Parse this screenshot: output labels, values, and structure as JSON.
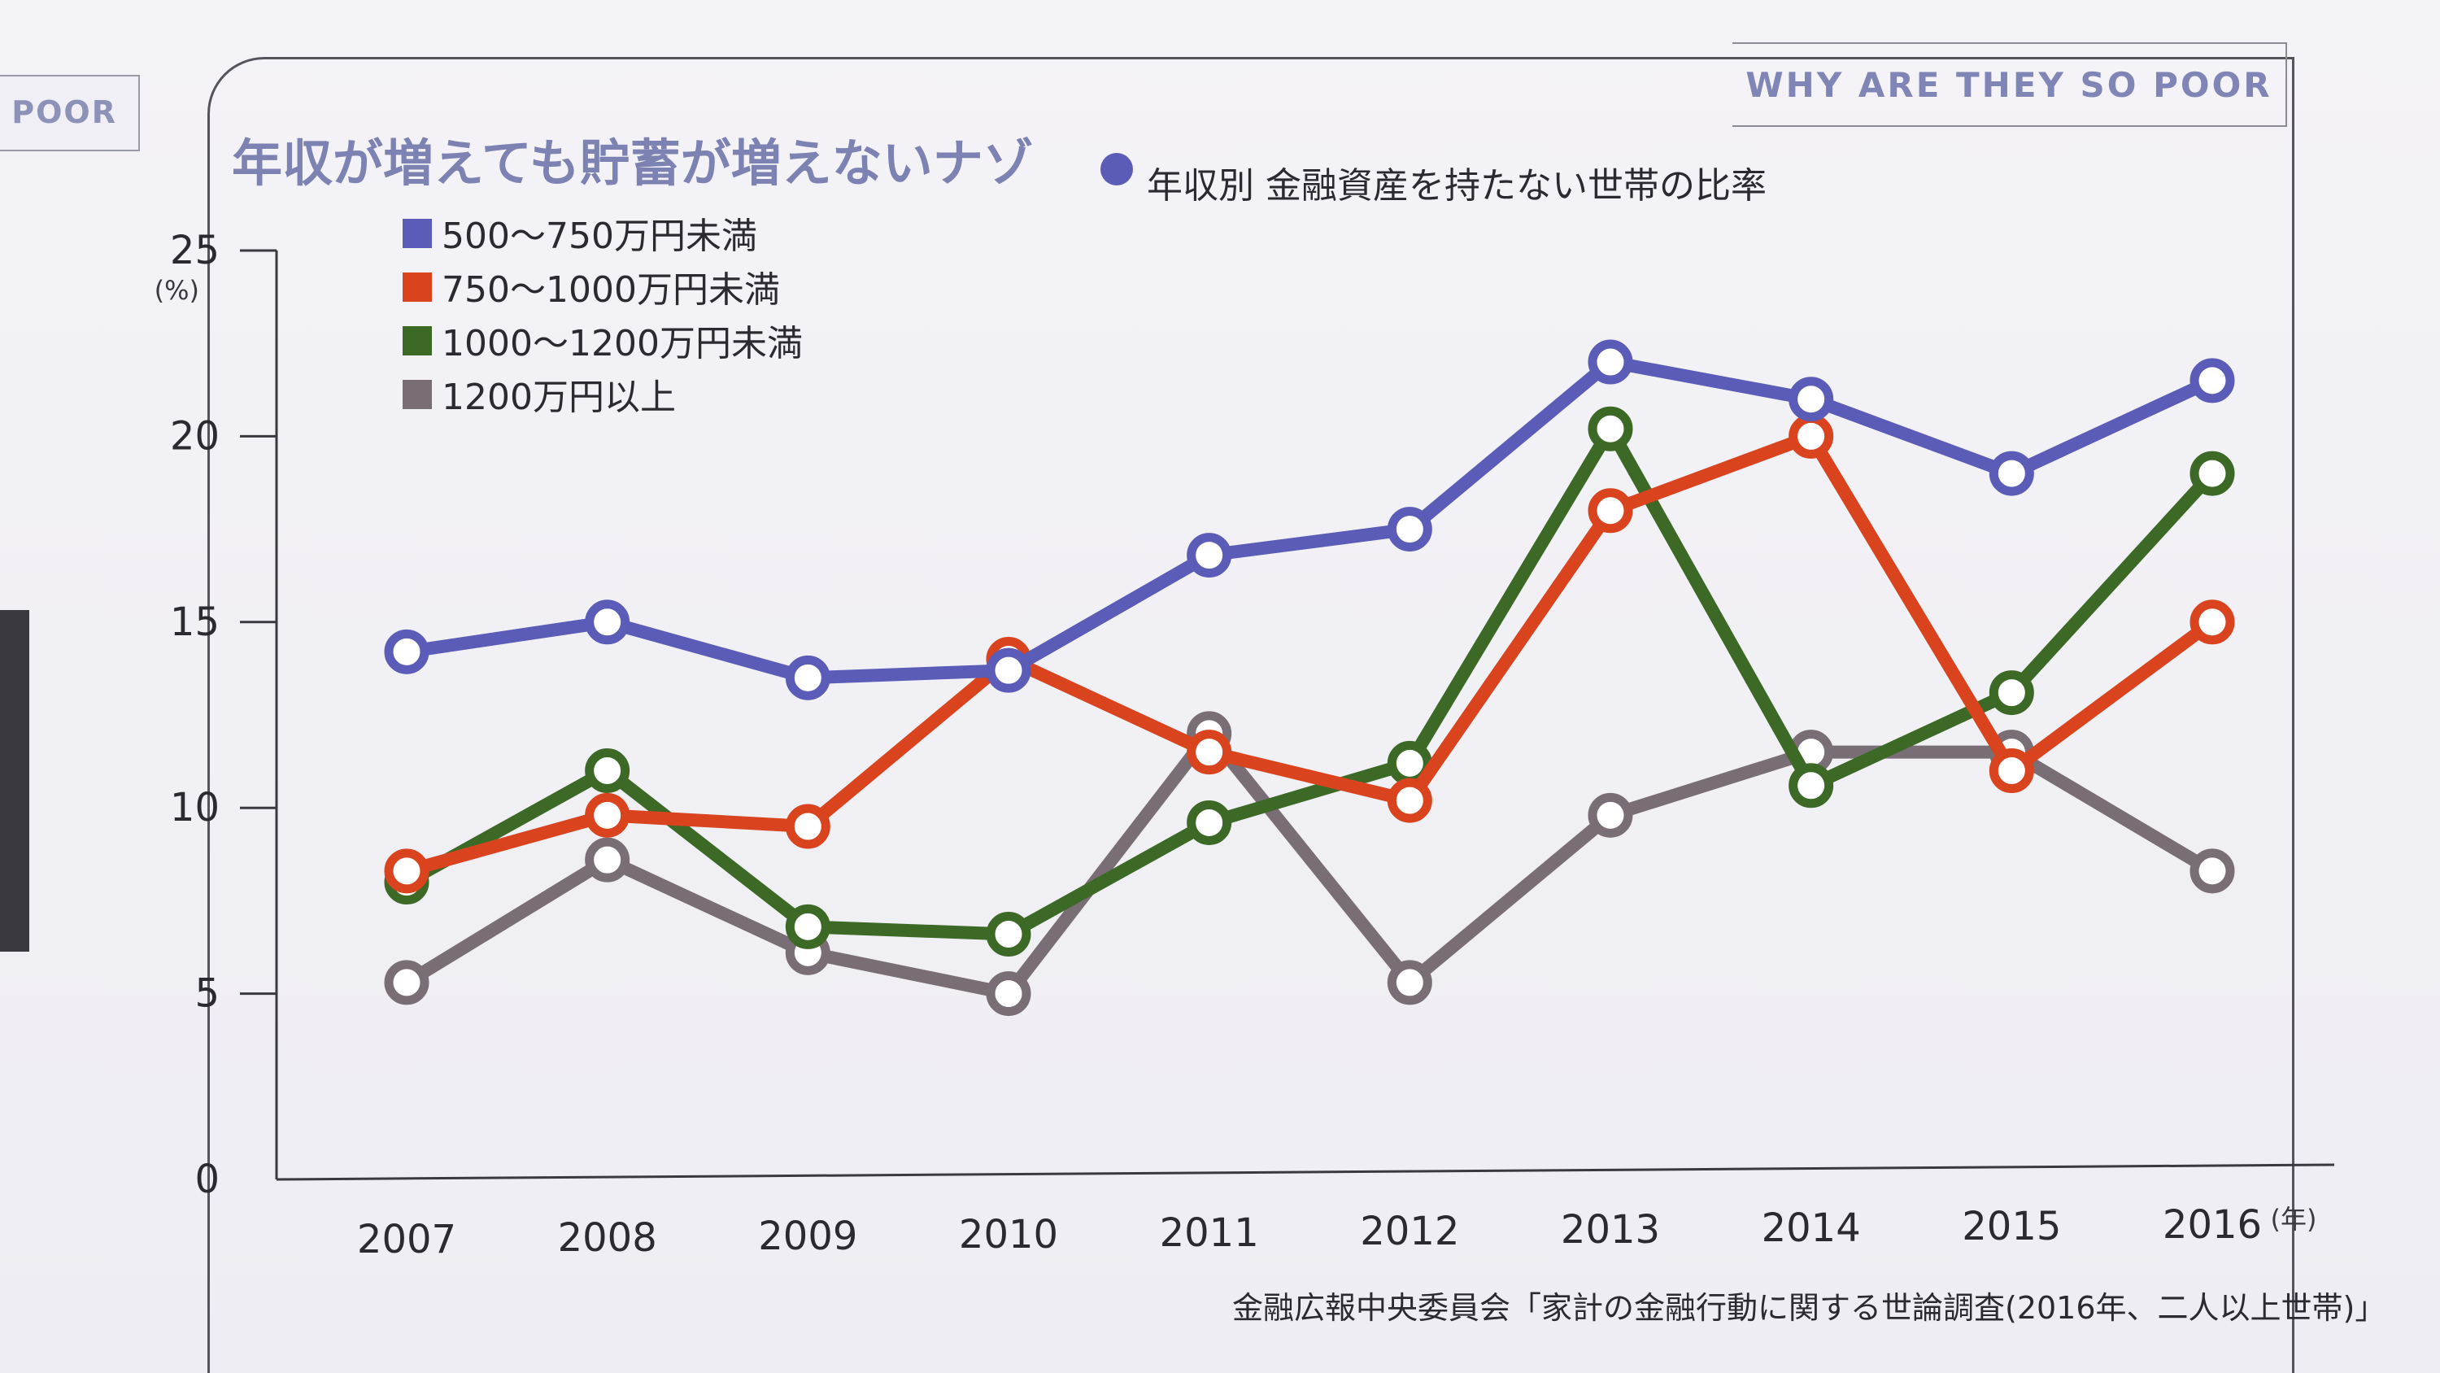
{
  "header": {
    "tag": "WHY ARE THEY SO POOR",
    "prev_page_tag": "POOR"
  },
  "title": "年収が増えても貯蓄が増えないナゾ",
  "subtitle": "年収別 金融資産を持たない世帯の比率",
  "source": "金融広報中央委員会「家計の金融行動に関する世論調査(2016年、二人以上世帯)」",
  "chart_data": {
    "type": "line",
    "title": "年収別 金融資産を持たない世帯の比率",
    "ylabel": "(%)",
    "xlabel": "(年)",
    "ylim": [
      0,
      25
    ],
    "yticks": [
      0,
      5,
      10,
      15,
      20,
      25
    ],
    "categories": [
      "2007",
      "2008",
      "2009",
      "2010",
      "2011",
      "2012",
      "2013",
      "2014",
      "2015",
      "2016"
    ],
    "legend_position": "top-left",
    "series": [
      {
        "name": "500～750万円未満",
        "color": "#5a5cb8",
        "values": [
          14.2,
          15.0,
          13.5,
          13.7,
          16.8,
          17.5,
          22.0,
          21.0,
          19.0,
          21.5
        ]
      },
      {
        "name": "750～1000万円未満",
        "color": "#d9431e",
        "values": [
          8.3,
          9.8,
          9.5,
          14.0,
          11.5,
          10.2,
          18.0,
          20.0,
          11.0,
          15.0
        ]
      },
      {
        "name": "1000～1200万円未満",
        "color": "#3c6a26",
        "values": [
          8.0,
          11.0,
          6.8,
          6.6,
          9.6,
          11.2,
          20.2,
          10.6,
          13.1,
          19.0
        ]
      },
      {
        "name": "1200万円以上",
        "color": "#7a6e76",
        "values": [
          5.3,
          8.6,
          6.1,
          5.0,
          12.0,
          5.3,
          9.8,
          11.5,
          11.5,
          8.3
        ]
      }
    ]
  }
}
